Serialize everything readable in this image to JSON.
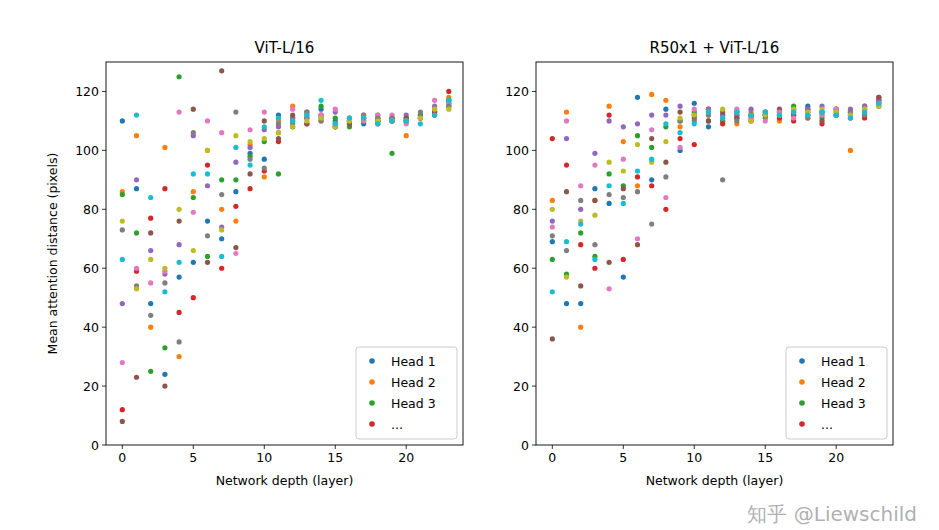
{
  "chart_data": [
    {
      "type": "scatter",
      "title": "ViT-L/16",
      "x_label": "Network depth (layer)",
      "y_label": "Mean attention distance (pixels)",
      "x": [
        0,
        1,
        2,
        3,
        4,
        5,
        6,
        7,
        8,
        9,
        10,
        11,
        12,
        13,
        14,
        15,
        16,
        17,
        18,
        19,
        20,
        21,
        22,
        23
      ],
      "xlim": [
        -1.15,
        24.0
      ],
      "xticks": [
        0,
        5,
        10,
        15,
        20
      ],
      "ylim": [
        0,
        130
      ],
      "yticks": [
        0,
        20,
        40,
        60,
        80,
        100,
        120
      ],
      "grid": false,
      "legend": "lower right",
      "marker": "circle",
      "series": [
        {
          "name": "Head 1",
          "color": "#1f77b4",
          "values": [
            110,
            87,
            48,
            24,
            57,
            62,
            76,
            70,
            86,
            99,
            97,
            112,
            110,
            111,
            114,
            110,
            110,
            109,
            111,
            111,
            110,
            112,
            113,
            116
          ]
        },
        {
          "name": "Head 2",
          "color": "#ff7f0e",
          "values": [
            86,
            105,
            40,
            101,
            30,
            86,
            100,
            80,
            76,
            102,
            91,
            110,
            115,
            112,
            110,
            109,
            111,
            112,
            110,
            110,
            105,
            111,
            114,
            118
          ]
        },
        {
          "name": "Head 3",
          "color": "#2ca02c",
          "values": [
            85,
            72,
            25,
            33,
            125,
            84,
            64,
            90,
            90,
            98,
            103,
            92,
            108,
            113,
            115,
            111,
            108,
            110,
            112,
            99,
            111,
            112,
            113,
            115
          ]
        },
        {
          "name": "...",
          "color": "#d62728",
          "values": [
            12,
            59,
            77,
            87,
            45,
            50,
            95,
            60,
            81,
            87,
            93,
            103,
            111,
            109,
            112,
            108,
            110,
            111,
            110,
            110,
            110,
            111,
            113,
            120
          ]
        },
        {
          "name": null,
          "color": "#9467bd",
          "values": [
            48,
            90,
            66,
            58,
            68,
            105,
            88,
            74,
            96,
            101,
            107,
            108,
            111,
            111,
            112,
            113,
            109,
            111,
            110,
            110,
            112,
            111,
            115,
            117
          ]
        },
        {
          "name": null,
          "color": "#8c564b",
          "values": [
            8,
            23,
            72,
            20,
            76,
            114,
            62,
            127,
            67,
            92,
            110,
            104,
            112,
            109,
            111,
            108,
            109,
            111,
            109,
            111,
            111,
            111,
            112,
            117
          ]
        },
        {
          "name": null,
          "color": "#e377c2",
          "values": [
            28,
            60,
            55,
            59,
            113,
            79,
            110,
            106,
            65,
            107,
            113,
            106,
            114,
            113,
            112,
            114,
            111,
            110,
            112,
            112,
            109,
            111,
            117,
            116
          ]
        },
        {
          "name": null,
          "color": "#7f7f7f",
          "values": [
            73,
            54,
            44,
            55,
            35,
            106,
            71,
            85,
            113,
            97,
            94,
            109,
            109,
            113,
            110,
            109,
            110,
            112,
            111,
            111,
            110,
            113,
            112,
            115
          ]
        },
        {
          "name": null,
          "color": "#bcbd22",
          "values": [
            76,
            53,
            63,
            60,
            80,
            66,
            100,
            73,
            105,
            103,
            104,
            106,
            108,
            110,
            111,
            108,
            110,
            111,
            110,
            110,
            110,
            111,
            114,
            114
          ]
        },
        {
          "name": null,
          "color": "#17becf",
          "values": [
            63,
            112,
            84,
            52,
            62,
            92,
            92,
            64,
            101,
            95,
            108,
            111,
            110,
            112,
            117,
            109,
            111,
            111,
            109,
            110,
            110,
            109,
            112,
            117
          ]
        }
      ]
    },
    {
      "type": "scatter",
      "title": "R50x1 + ViT-L/16",
      "x_label": "Network depth (layer)",
      "x": [
        0,
        1,
        2,
        3,
        4,
        5,
        6,
        7,
        8,
        9,
        10,
        11,
        12,
        13,
        14,
        15,
        16,
        17,
        18,
        19,
        20,
        21,
        22,
        23
      ],
      "xlim": [
        -1.15,
        24.0
      ],
      "xticks": [
        0,
        5,
        10,
        15,
        20
      ],
      "ylim": [
        0,
        130
      ],
      "yticks": [
        0,
        20,
        40,
        60,
        80,
        100,
        120
      ],
      "grid": false,
      "legend": "lower right",
      "marker": "circle",
      "series": [
        {
          "name": "Head 1",
          "color": "#1f77b4",
          "values": [
            69,
            48,
            48,
            87,
            82,
            57,
            118,
            90,
            114,
            100,
            116,
            108,
            112,
            113,
            111,
            112,
            113,
            114,
            115,
            113,
            112,
            113,
            112,
            117
          ]
        },
        {
          "name": "Head 2",
          "color": "#ff7f0e",
          "values": [
            83,
            113,
            40,
            83,
            115,
            103,
            88,
            119,
            117,
            108,
            112,
            112,
            110,
            109,
            113,
            113,
            110,
            112,
            111,
            112,
            113,
            100,
            114,
            116
          ]
        },
        {
          "name": "Head 3",
          "color": "#2ca02c",
          "values": [
            63,
            58,
            72,
            64,
            92,
            88,
            105,
            101,
            108,
            110,
            113,
            110,
            110,
            112,
            112,
            111,
            113,
            115,
            112,
            111,
            114,
            113,
            115,
            117
          ]
        },
        {
          "name": "...",
          "color": "#d62728",
          "values": [
            104,
            95,
            68,
            60,
            112,
            63,
            91,
            88,
            80,
            104,
            102,
            114,
            109,
            111,
            110,
            112,
            111,
            110,
            114,
            109,
            112,
            112,
            111,
            118
          ]
        },
        {
          "name": null,
          "color": "#9467bd",
          "values": [
            76,
            104,
            80,
            99,
            110,
            108,
            109,
            112,
            112,
            115,
            112,
            114,
            112,
            112,
            114,
            113,
            112,
            113,
            114,
            115,
            113,
            114,
            115,
            117
          ]
        },
        {
          "name": null,
          "color": "#8c564b",
          "values": [
            36,
            86,
            54,
            83,
            62,
            87,
            68,
            104,
            96,
            113,
            111,
            110,
            113,
            111,
            112,
            112,
            114,
            112,
            113,
            110,
            114,
            111,
            113,
            118
          ]
        },
        {
          "name": null,
          "color": "#e377c2",
          "values": [
            74,
            110,
            88,
            95,
            53,
            97,
            70,
            107,
            84,
            101,
            114,
            113,
            111,
            114,
            111,
            110,
            113,
            111,
            112,
            112,
            114,
            112,
            114,
            116
          ]
        },
        {
          "name": null,
          "color": "#7f7f7f",
          "values": [
            71,
            66,
            83,
            68,
            85,
            84,
            86,
            75,
            91,
            110,
            110,
            112,
            90,
            110,
            112,
            113,
            112,
            113,
            111,
            113,
            112,
            113,
            112,
            115
          ]
        },
        {
          "name": null,
          "color": "#bcbd22",
          "values": [
            80,
            57,
            76,
            78,
            96,
            93,
            102,
            96,
            103,
            111,
            112,
            113,
            114,
            113,
            110,
            112,
            112,
            114,
            113,
            114,
            113,
            112,
            114,
            115
          ]
        },
        {
          "name": null,
          "color": "#17becf",
          "values": [
            52,
            69,
            75,
            63,
            88,
            82,
            93,
            97,
            109,
            106,
            109,
            113,
            111,
            113,
            112,
            113,
            112,
            113,
            112,
            113,
            112,
            111,
            113,
            116
          ]
        }
      ]
    }
  ],
  "watermark": "知乎 @Liewschild"
}
